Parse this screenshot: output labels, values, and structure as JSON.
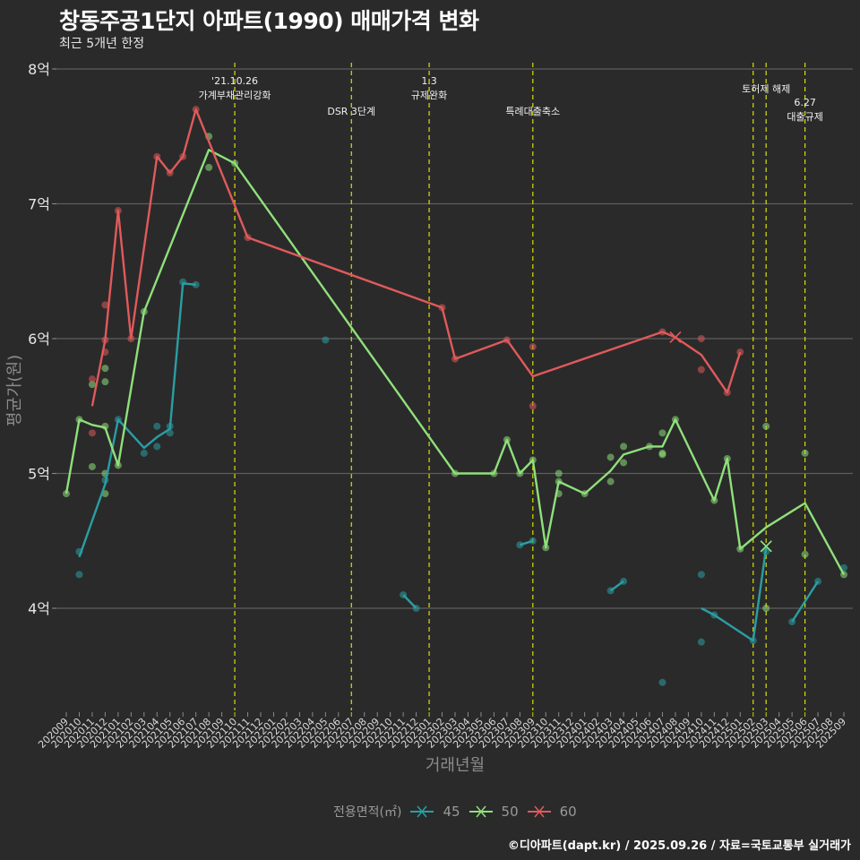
{
  "header": {
    "title": "창동주공1단지 아파트(1990) 매매가격 변화",
    "subtitle": "최근 5개년 한정"
  },
  "footer": {
    "credit": "©디아파트(dapt.kr) / 2025.09.26 / 자료=국토교통부 실거래가"
  },
  "legend": {
    "title": "전용면적(㎡)",
    "items": [
      {
        "label": "45",
        "color": "#2a9ea3"
      },
      {
        "label": "50",
        "color": "#8fe07a"
      },
      {
        "label": "60",
        "color": "#e05a5a"
      }
    ]
  },
  "chart_data": {
    "type": "line",
    "title": "창동주공1단지 아파트(1990) 매매가격 변화",
    "subtitle": "최근 5개년 한정",
    "xlabel": "거래년월",
    "ylabel": "평균가(원)",
    "ylim": [
      3.3,
      8.0
    ],
    "grid": true,
    "legend_position": "bottom",
    "y_ticks": [
      {
        "value": 4,
        "label": "4억"
      },
      {
        "value": 5,
        "label": "5억"
      },
      {
        "value": 6,
        "label": "6억"
      },
      {
        "value": 7,
        "label": "7억"
      },
      {
        "value": 8,
        "label": "8억"
      }
    ],
    "x_ticks": [
      "202009",
      "202010",
      "202011",
      "202012",
      "202101",
      "202102",
      "202103",
      "202104",
      "202105",
      "202106",
      "202107",
      "202108",
      "202109",
      "202110",
      "202111",
      "202112",
      "202201",
      "202202",
      "202203",
      "202204",
      "202205",
      "202206",
      "202207",
      "202208",
      "202209",
      "202210",
      "202211",
      "202212",
      "202301",
      "202302",
      "202303",
      "202304",
      "202305",
      "202306",
      "202307",
      "202308",
      "202309",
      "202310",
      "202311",
      "202312",
      "202401",
      "202402",
      "202403",
      "202404",
      "202405",
      "202406",
      "202407",
      "202408",
      "202409",
      "202410",
      "202411",
      "202412",
      "202501",
      "202502",
      "202503",
      "202504",
      "202505",
      "202506",
      "202507",
      "202508",
      "202509"
    ],
    "annotations": [
      {
        "x": "202110",
        "lines": [
          "'21.10.26",
          "가계부채관리강화"
        ],
        "row": 1
      },
      {
        "x": "202207",
        "lines": [
          "DSR 3단계"
        ],
        "row": 3
      },
      {
        "x": "202301",
        "lines": [
          "1.3",
          "규제완화"
        ],
        "row": 1
      },
      {
        "x": "202309",
        "lines": [
          "특례대출축소"
        ],
        "row": 3
      },
      {
        "x": "202502",
        "lines": [],
        "row": 0
      },
      {
        "x": "202503",
        "lines": [
          "토허제 해제"
        ],
        "row": 2
      },
      {
        "x": "202506",
        "lines": [
          "6.27",
          "대출규제"
        ],
        "row": 4
      }
    ],
    "series": [
      {
        "name": "45",
        "color": "#2a9ea3",
        "line_segments": [
          [
            [
              "202010",
              4.38
            ],
            [
              "202012",
              4.92
            ],
            [
              "202101",
              5.4
            ],
            [
              "202103",
              5.19
            ],
            [
              "202104",
              5.27
            ],
            [
              "202105",
              5.33
            ],
            [
              "202106",
              6.41
            ],
            [
              "202107",
              6.4
            ]
          ],
          [
            [
              "202211",
              4.1
            ],
            [
              "202212",
              4.0
            ]
          ],
          [
            [
              "202308",
              4.47
            ],
            [
              "202309",
              4.5
            ]
          ],
          [
            [
              "202403",
              4.13
            ],
            [
              "202404",
              4.2
            ]
          ],
          [
            [
              "202410",
              4.0
            ],
            [
              "202411",
              3.95
            ],
            [
              "202502",
              3.76
            ],
            [
              "202503",
              4.45
            ]
          ],
          [
            [
              "202505",
              3.9
            ],
            [
              "202507",
              4.2
            ]
          ]
        ],
        "points": [
          [
            "202010",
            4.42
          ],
          [
            "202010",
            4.25
          ],
          [
            "202012",
            4.95
          ],
          [
            "202101",
            5.4
          ],
          [
            "202103",
            5.15
          ],
          [
            "202104",
            5.2
          ],
          [
            "202104",
            5.35
          ],
          [
            "202105",
            5.3
          ],
          [
            "202105",
            5.35
          ],
          [
            "202106",
            6.42
          ],
          [
            "202107",
            6.4
          ],
          [
            "202205",
            5.99
          ],
          [
            "202211",
            4.1
          ],
          [
            "202212",
            4.0
          ],
          [
            "202308",
            4.47
          ],
          [
            "202309",
            4.5
          ],
          [
            "202403",
            4.13
          ],
          [
            "202404",
            4.2
          ],
          [
            "202407",
            3.45
          ],
          [
            "202410",
            4.25
          ],
          [
            "202410",
            3.75
          ],
          [
            "202411",
            3.95
          ],
          [
            "202502",
            3.76
          ],
          [
            "202503",
            4.42
          ],
          [
            "202505",
            3.9
          ],
          [
            "202507",
            4.2
          ],
          [
            "202509",
            4.3
          ]
        ],
        "marker": [
          "202503",
          4.46
        ]
      },
      {
        "name": "50",
        "color": "#8fe07a",
        "line_segments": [
          [
            [
              "202009",
              4.85
            ],
            [
              "202010",
              5.4
            ],
            [
              "202011",
              5.36
            ],
            [
              "202012",
              5.34
            ],
            [
              "202101",
              5.06
            ],
            [
              "202103",
              6.2
            ],
            [
              "202108",
              7.4
            ],
            [
              "202110",
              7.3
            ],
            [
              "202303",
              5.0
            ],
            [
              "202306",
              5.0
            ],
            [
              "202307",
              5.25
            ],
            [
              "202308",
              5.0
            ],
            [
              "202309",
              5.1
            ],
            [
              "202310",
              4.45
            ],
            [
              "202311",
              4.94
            ],
            [
              "202401",
              4.85
            ],
            [
              "202403",
              5.02
            ],
            [
              "202404",
              5.14
            ],
            [
              "202406",
              5.2
            ],
            [
              "202407",
              5.2
            ],
            [
              "202408",
              5.4
            ],
            [
              "202411",
              4.8
            ],
            [
              "202412",
              5.11
            ],
            [
              "202501",
              4.44
            ],
            [
              "202503",
              4.6
            ],
            [
              "202506",
              4.78
            ],
            [
              "202509",
              4.25
            ]
          ]
        ],
        "points": [
          [
            "202009",
            4.85
          ],
          [
            "202010",
            5.4
          ],
          [
            "202011",
            5.05
          ],
          [
            "202011",
            5.66
          ],
          [
            "202012",
            5.78
          ],
          [
            "202012",
            5.68
          ],
          [
            "202012",
            5.35
          ],
          [
            "202012",
            5.0
          ],
          [
            "202012",
            4.85
          ],
          [
            "202101",
            5.06
          ],
          [
            "202103",
            6.2
          ],
          [
            "202108",
            7.5
          ],
          [
            "202108",
            7.27
          ],
          [
            "202110",
            7.3
          ],
          [
            "202303",
            5.0
          ],
          [
            "202306",
            5.0
          ],
          [
            "202307",
            5.25
          ],
          [
            "202308",
            5.0
          ],
          [
            "202309",
            5.1
          ],
          [
            "202310",
            4.45
          ],
          [
            "202311",
            4.94
          ],
          [
            "202311",
            5.0
          ],
          [
            "202311",
            4.85
          ],
          [
            "202401",
            4.85
          ],
          [
            "202403",
            5.12
          ],
          [
            "202403",
            4.94
          ],
          [
            "202404",
            5.2
          ],
          [
            "202404",
            5.08
          ],
          [
            "202406",
            5.2
          ],
          [
            "202407",
            5.3
          ],
          [
            "202407",
            5.15
          ],
          [
            "202407",
            5.14
          ],
          [
            "202408",
            5.4
          ],
          [
            "202411",
            4.8
          ],
          [
            "202412",
            5.11
          ],
          [
            "202501",
            4.44
          ],
          [
            "202503",
            5.35
          ],
          [
            "202503",
            4.0
          ],
          [
            "202506",
            5.15
          ],
          [
            "202506",
            4.4
          ],
          [
            "202509",
            4.25
          ]
        ],
        "marker": [
          "202503",
          4.46
        ]
      },
      {
        "name": "60",
        "color": "#e05a5a",
        "line_segments": [
          [
            [
              "202011",
              5.5
            ],
            [
              "202012",
              5.99
            ],
            [
              "202101",
              6.95
            ],
            [
              "202102",
              6.0
            ],
            [
              "202104",
              7.35
            ],
            [
              "202105",
              7.23
            ],
            [
              "202106",
              7.35
            ],
            [
              "202107",
              7.7
            ],
            [
              "202111",
              6.75
            ],
            [
              "202302",
              6.23
            ],
            [
              "202303",
              5.85
            ],
            [
              "202307",
              5.99
            ],
            [
              "202309",
              5.72
            ],
            [
              "202407",
              6.05
            ],
            [
              "202408",
              6.01
            ],
            [
              "202410",
              5.88
            ],
            [
              "202412",
              5.6
            ],
            [
              "202501",
              5.9
            ]
          ]
        ],
        "points": [
          [
            "202011",
            5.7
          ],
          [
            "202011",
            5.3
          ],
          [
            "202012",
            6.25
          ],
          [
            "202012",
            5.99
          ],
          [
            "202012",
            5.9
          ],
          [
            "202101",
            6.95
          ],
          [
            "202102",
            6.0
          ],
          [
            "202104",
            7.35
          ],
          [
            "202105",
            7.23
          ],
          [
            "202106",
            7.35
          ],
          [
            "202107",
            7.7
          ],
          [
            "202111",
            6.75
          ],
          [
            "202302",
            6.23
          ],
          [
            "202303",
            5.85
          ],
          [
            "202307",
            5.99
          ],
          [
            "202309",
            5.94
          ],
          [
            "202309",
            5.5
          ],
          [
            "202407",
            6.05
          ],
          [
            "202410",
            6.0
          ],
          [
            "202410",
            5.77
          ],
          [
            "202412",
            5.6
          ],
          [
            "202501",
            5.9
          ]
        ],
        "marker": [
          "202408",
          6.01
        ]
      }
    ]
  }
}
